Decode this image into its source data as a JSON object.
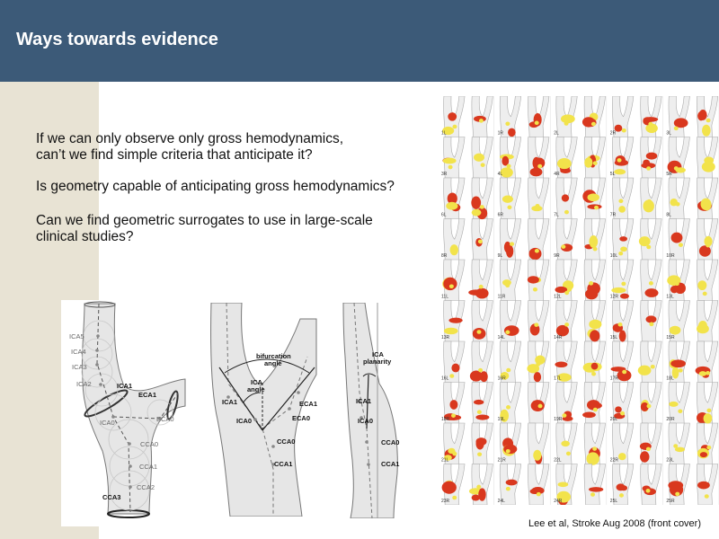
{
  "slide": {
    "title": "Ways towards evidence",
    "paragraphs": [
      [
        "If we can only observe only gross hemodynamics,",
        "can’t we find simple criteria that anticipate it?"
      ],
      [
        "Is geometry capable of anticipating gross hemodynamics?"
      ],
      [
        "Can we find geometric surrogates to use in large-scale",
        "clinical studies?"
      ]
    ],
    "caption": "Lee et al, Stroke Aug 2008 (front cover)"
  },
  "figure_left": {
    "labels": [
      "ICA5",
      "ICA4",
      "ICA3",
      "ICA2",
      "ICA1",
      "ECA1",
      "ICA0",
      "ECA0",
      "CCA0",
      "CCA1",
      "CCA2",
      "CCA3"
    ]
  },
  "figure_middle": {
    "labels": {
      "bifurcation_1": "bifurcation",
      "bifurcation_2": "angle",
      "ica_angle_1": "ICA",
      "ica_angle_2": "angle",
      "ica1": "ICA1",
      "ica0": "ICA0",
      "eca1": "ECA1",
      "eca0": "ECA0",
      "cca0": "CCA0",
      "cca1": "CCA1"
    }
  },
  "figure_right": {
    "labels": {
      "planarity_1": "ICA",
      "planarity_2": "planarity",
      "ica1": "ICA1",
      "ica0": "ICA0",
      "cca0": "CCA0",
      "cca1": "CCA1"
    }
  },
  "grid": {
    "colors": {
      "high": "#d9381e",
      "mid": "#f2e34b",
      "vessel": "#eeeeee"
    },
    "cells": [
      [
        "1L",
        "1R",
        "2L",
        "2R",
        "3L"
      ],
      [
        "3R",
        "4L",
        "4R",
        "5L",
        "5R"
      ],
      [
        "6L",
        "6R",
        "7L",
        "7R",
        "8L"
      ],
      [
        "8R",
        "9L",
        "9R",
        "10L",
        "10R"
      ],
      [
        "11L",
        "11R",
        "12L",
        "12R",
        "13L"
      ],
      [
        "13R",
        "14L",
        "14R",
        "15L",
        "15R"
      ],
      [
        "16L",
        "16R",
        "17L",
        "17R",
        "18L"
      ],
      [
        "18R",
        "19L",
        "19R",
        "20L",
        "20R"
      ],
      [
        "21L",
        "21R",
        "22L",
        "22R",
        "23L"
      ],
      [
        "23R",
        "24L",
        "24R",
        "25L",
        "25R"
      ]
    ]
  }
}
